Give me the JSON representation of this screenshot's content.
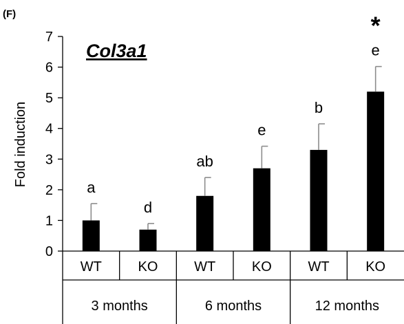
{
  "panel_label": "(F)",
  "chart_data": {
    "type": "bar",
    "title": "Col3a1",
    "ylabel": "Fold induction",
    "xlabel": "",
    "ylim": [
      0,
      7
    ],
    "yticks": [
      "0",
      "1",
      "2",
      "3",
      "4",
      "5",
      "6",
      "7"
    ],
    "categories": [
      "WT",
      "KO",
      "WT",
      "KO",
      "WT",
      "KO"
    ],
    "groups": [
      "3 months",
      "6 months",
      "12 months"
    ],
    "values": [
      1.0,
      0.7,
      1.8,
      2.7,
      3.3,
      5.2
    ],
    "errors": [
      0.55,
      0.2,
      0.6,
      0.72,
      0.85,
      0.82
    ],
    "letters": [
      "a",
      "d",
      "ab",
      "e",
      "b",
      "e"
    ],
    "significance": [
      "",
      "",
      "",
      "",
      "",
      "*"
    ],
    "bar_color": "#000000",
    "error_color": "#8c8c8c"
  }
}
